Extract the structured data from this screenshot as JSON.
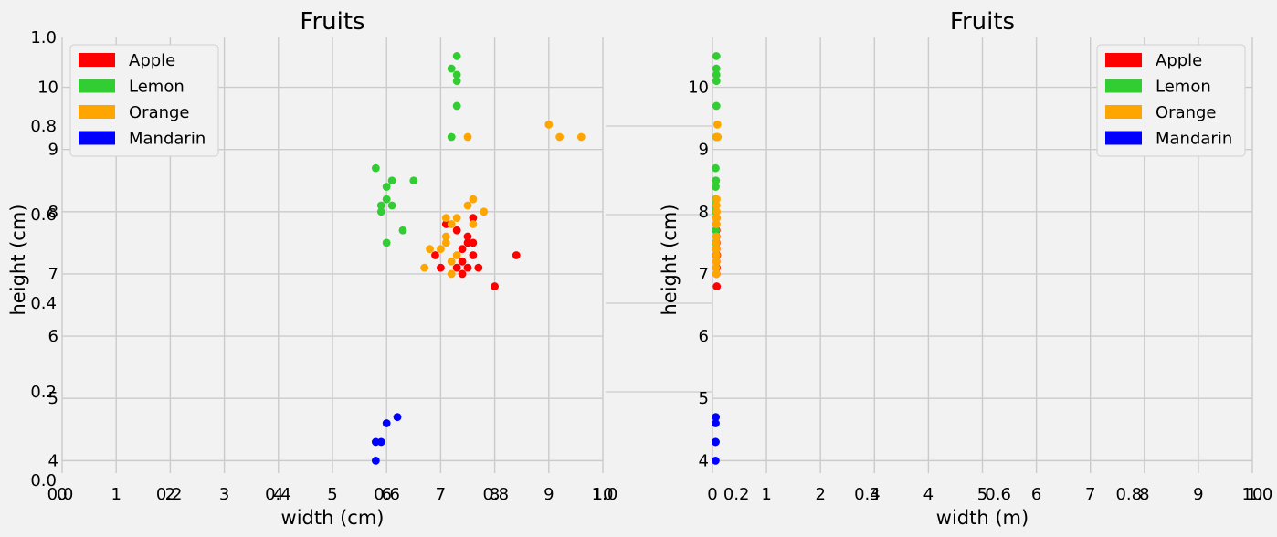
{
  "colors": {
    "background": "#f2f2f2",
    "grid": "#cbcbcb",
    "apple": "#ff0000",
    "lemon": "#32cd32",
    "orange": "#ffa500",
    "mandarin": "#0000ff"
  },
  "chart_data": [
    {
      "type": "axes-background",
      "xlim": [
        0,
        1
      ],
      "ylim": [
        0,
        1
      ],
      "x_ticks": [
        "0.0",
        "0.2",
        "0.4",
        "0.6",
        "0.8",
        "1.0"
      ],
      "y_ticks": [
        "0.0",
        "0.2",
        "0.4",
        "0.6",
        "0.8",
        "1.0"
      ]
    },
    {
      "type": "scatter",
      "title": "Fruits",
      "xlabel": "width (cm)",
      "ylabel": "height (cm)",
      "xlim": [
        0,
        10
      ],
      "ylim": [
        3.8,
        10.8
      ],
      "x_ticks": [
        "0",
        "1",
        "2",
        "3",
        "4",
        "5",
        "6",
        "7",
        "8",
        "9",
        "10"
      ],
      "y_ticks": [
        "4",
        "5",
        "6",
        "7",
        "8",
        "9",
        "10"
      ],
      "legend_position": "upper-left",
      "grid": true,
      "series": [
        {
          "name": "Apple",
          "color": "#ff0000",
          "points": [
            [
              7.1,
              7.8
            ],
            [
              7.3,
              7.7
            ],
            [
              7.6,
              7.9
            ],
            [
              7.5,
              7.6
            ],
            [
              7.5,
              7.5
            ],
            [
              7.6,
              7.5
            ],
            [
              7.4,
              7.4
            ],
            [
              6.9,
              7.3
            ],
            [
              7.6,
              7.3
            ],
            [
              8.4,
              7.3
            ],
            [
              7.4,
              7.2
            ],
            [
              7.0,
              7.1
            ],
            [
              7.3,
              7.1
            ],
            [
              7.5,
              7.1
            ],
            [
              7.7,
              7.1
            ],
            [
              7.4,
              7.0
            ],
            [
              8.0,
              6.8
            ]
          ]
        },
        {
          "name": "Lemon",
          "color": "#32cd32",
          "points": [
            [
              7.3,
              10.5
            ],
            [
              7.2,
              10.3
            ],
            [
              7.3,
              10.2
            ],
            [
              7.3,
              10.1
            ],
            [
              7.3,
              9.7
            ],
            [
              7.2,
              9.2
            ],
            [
              5.8,
              8.7
            ],
            [
              6.1,
              8.5
            ],
            [
              6.5,
              8.5
            ],
            [
              6.0,
              8.4
            ],
            [
              6.0,
              8.2
            ],
            [
              5.9,
              8.1
            ],
            [
              6.1,
              8.1
            ],
            [
              5.9,
              8.0
            ],
            [
              6.3,
              7.7
            ],
            [
              6.0,
              7.5
            ]
          ]
        },
        {
          "name": "Orange",
          "color": "#ffa500",
          "points": [
            [
              9.0,
              9.4
            ],
            [
              9.2,
              9.2
            ],
            [
              9.6,
              9.2
            ],
            [
              7.5,
              9.2
            ],
            [
              7.6,
              8.2
            ],
            [
              7.5,
              8.1
            ],
            [
              7.8,
              8.0
            ],
            [
              7.1,
              7.9
            ],
            [
              7.3,
              7.9
            ],
            [
              7.2,
              7.8
            ],
            [
              7.6,
              7.8
            ],
            [
              7.1,
              7.6
            ],
            [
              7.1,
              7.5
            ],
            [
              6.8,
              7.4
            ],
            [
              7.0,
              7.4
            ],
            [
              7.3,
              7.3
            ],
            [
              7.2,
              7.2
            ],
            [
              6.7,
              7.1
            ],
            [
              7.2,
              7.0
            ]
          ]
        },
        {
          "name": "Mandarin",
          "color": "#0000ff",
          "points": [
            [
              6.2,
              4.7
            ],
            [
              6.0,
              4.6
            ],
            [
              5.8,
              4.3
            ],
            [
              5.9,
              4.3
            ],
            [
              5.8,
              4.0
            ]
          ]
        }
      ]
    },
    {
      "type": "axes-background",
      "xlim": [
        0,
        1
      ],
      "ylim": [
        0,
        1
      ],
      "x_ticks": [
        "0.0",
        "0.2",
        "0.4",
        "0.6",
        "0.8",
        "1.0"
      ],
      "y_ticks": [
        "0.0",
        "0.2",
        "0.4",
        "0.6",
        "0.8",
        "1.0"
      ]
    },
    {
      "type": "scatter",
      "title": "Fruits",
      "xlabel": "width (m)",
      "ylabel": "height (cm)",
      "xlim": [
        0,
        10
      ],
      "ylim": [
        3.8,
        10.8
      ],
      "x_ticks": [
        "0",
        "1",
        "2",
        "3",
        "4",
        "5",
        "6",
        "7",
        "8",
        "9",
        "10"
      ],
      "y_ticks": [
        "4",
        "5",
        "6",
        "7",
        "8",
        "9",
        "10"
      ],
      "legend_position": "upper-right",
      "grid": true,
      "series": [
        {
          "name": "Apple",
          "color": "#ff0000",
          "points": [
            [
              0.071,
              7.8
            ],
            [
              0.073,
              7.7
            ],
            [
              0.076,
              7.9
            ],
            [
              0.075,
              7.6
            ],
            [
              0.075,
              7.5
            ],
            [
              0.076,
              7.5
            ],
            [
              0.074,
              7.4
            ],
            [
              0.069,
              7.3
            ],
            [
              0.076,
              7.3
            ],
            [
              0.084,
              7.3
            ],
            [
              0.074,
              7.2
            ],
            [
              0.07,
              7.1
            ],
            [
              0.073,
              7.1
            ],
            [
              0.075,
              7.1
            ],
            [
              0.077,
              7.1
            ],
            [
              0.074,
              7.0
            ],
            [
              0.08,
              6.8
            ]
          ]
        },
        {
          "name": "Lemon",
          "color": "#32cd32",
          "points": [
            [
              0.073,
              10.5
            ],
            [
              0.072,
              10.3
            ],
            [
              0.073,
              10.2
            ],
            [
              0.073,
              10.1
            ],
            [
              0.073,
              9.7
            ],
            [
              0.072,
              9.2
            ],
            [
              0.058,
              8.7
            ],
            [
              0.061,
              8.5
            ],
            [
              0.065,
              8.5
            ],
            [
              0.06,
              8.4
            ],
            [
              0.06,
              8.2
            ],
            [
              0.059,
              8.1
            ],
            [
              0.061,
              8.1
            ],
            [
              0.059,
              8.0
            ],
            [
              0.063,
              7.7
            ],
            [
              0.06,
              7.5
            ]
          ]
        },
        {
          "name": "Orange",
          "color": "#ffa500",
          "points": [
            [
              0.09,
              9.4
            ],
            [
              0.092,
              9.2
            ],
            [
              0.096,
              9.2
            ],
            [
              0.075,
              9.2
            ],
            [
              0.076,
              8.2
            ],
            [
              0.075,
              8.1
            ],
            [
              0.078,
              8.0
            ],
            [
              0.071,
              7.9
            ],
            [
              0.073,
              7.9
            ],
            [
              0.072,
              7.8
            ],
            [
              0.076,
              7.8
            ],
            [
              0.071,
              7.6
            ],
            [
              0.071,
              7.5
            ],
            [
              0.068,
              7.4
            ],
            [
              0.07,
              7.4
            ],
            [
              0.073,
              7.3
            ],
            [
              0.072,
              7.2
            ],
            [
              0.067,
              7.1
            ],
            [
              0.072,
              7.0
            ]
          ]
        },
        {
          "name": "Mandarin",
          "color": "#0000ff",
          "points": [
            [
              0.062,
              4.7
            ],
            [
              0.06,
              4.6
            ],
            [
              0.058,
              4.3
            ],
            [
              0.059,
              4.3
            ],
            [
              0.058,
              4.0
            ]
          ]
        }
      ]
    }
  ]
}
